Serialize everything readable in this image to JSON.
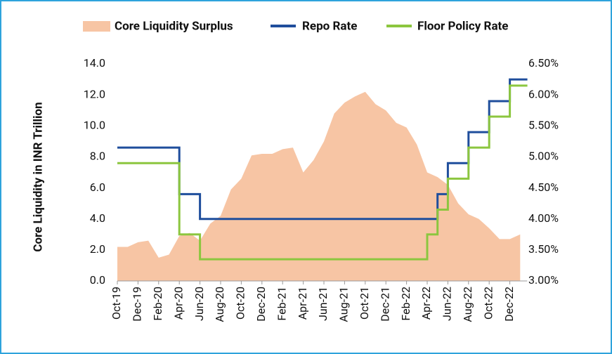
{
  "chart_data": {
    "type": "line",
    "y_label": "Core Liquidity in INR Trillion",
    "categories": [
      "Oct-19",
      null,
      "Dec-19",
      null,
      "Feb-20",
      null,
      "Apr-20",
      null,
      "Jun-20",
      null,
      "Aug-20",
      null,
      "Oct-20",
      null,
      "Dec-20",
      null,
      "Feb-21",
      null,
      "Apr-21",
      null,
      "Jun-21",
      null,
      "Aug-21",
      null,
      "Oct-21",
      null,
      "Dec-21",
      null,
      "Feb-22",
      null,
      "Apr-22",
      null,
      "Jun-22",
      null,
      "Aug-22",
      null,
      "Oct-22",
      null,
      "Dec-22",
      null
    ],
    "series": [
      {
        "name": "Core Liquidity Surplus",
        "kind": "area",
        "color": "#f7c5a4",
        "values": [
          2.2,
          2.2,
          2.5,
          2.6,
          1.5,
          1.7,
          2.9,
          3.1,
          2.6,
          3.7,
          4.2,
          5.9,
          6.6,
          8.1,
          8.2,
          8.2,
          8.5,
          8.6,
          7.0,
          7.8,
          9.0,
          10.8,
          11.5,
          11.9,
          12.2,
          11.4,
          11.0,
          10.2,
          9.9,
          8.8,
          7.0,
          6.7,
          6.2,
          5.0,
          4.3,
          4.0,
          3.4,
          2.7,
          2.7,
          3.0
        ]
      },
      {
        "name": "Repo Rate",
        "kind": "step",
        "axis": "y2",
        "color": "#1f4e9c",
        "values": [
          5.15,
          5.15,
          5.15,
          5.15,
          5.15,
          5.15,
          4.4,
          4.4,
          4.0,
          4.0,
          4.0,
          4.0,
          4.0,
          4.0,
          4.0,
          4.0,
          4.0,
          4.0,
          4.0,
          4.0,
          4.0,
          4.0,
          4.0,
          4.0,
          4.0,
          4.0,
          4.0,
          4.0,
          4.0,
          4.0,
          4.0,
          4.4,
          4.9,
          4.9,
          5.4,
          5.4,
          5.9,
          5.9,
          6.25,
          6.25
        ]
      },
      {
        "name": "Floor Policy Rate",
        "kind": "step",
        "axis": "y2",
        "color": "#8cc63f",
        "values": [
          4.9,
          4.9,
          4.9,
          4.9,
          4.9,
          4.9,
          3.75,
          3.75,
          3.35,
          3.35,
          3.35,
          3.35,
          3.35,
          3.35,
          3.35,
          3.35,
          3.35,
          3.35,
          3.35,
          3.35,
          3.35,
          3.35,
          3.35,
          3.35,
          3.35,
          3.35,
          3.35,
          3.35,
          3.35,
          3.35,
          3.75,
          4.15,
          4.65,
          4.65,
          5.15,
          5.15,
          5.65,
          5.65,
          6.15,
          6.15
        ]
      }
    ],
    "ylim": [
      0,
      14
    ],
    "yticks": [
      {
        "value": 0,
        "label": "0.0"
      },
      {
        "value": 2,
        "label": "2.0"
      },
      {
        "value": 4,
        "label": "4.0"
      },
      {
        "value": 6,
        "label": "6.0"
      },
      {
        "value": 8,
        "label": "8.0"
      },
      {
        "value": 10,
        "label": "10.0"
      },
      {
        "value": 12,
        "label": "12.0"
      },
      {
        "value": 14,
        "label": "14.0"
      }
    ],
    "y2lim": [
      3,
      6.5
    ],
    "y2ticks": [
      {
        "value": 3,
        "label": "3.00%"
      },
      {
        "value": 3.5,
        "label": "3.50%"
      },
      {
        "value": 4,
        "label": "4.00%"
      },
      {
        "value": 4.5,
        "label": "4.50%"
      },
      {
        "value": 5,
        "label": "5.00%"
      },
      {
        "value": 5.5,
        "label": "5.50%"
      },
      {
        "value": 6,
        "label": "6.00%"
      },
      {
        "value": 6.5,
        "label": "6.50%"
      }
    ],
    "legend": "top"
  }
}
